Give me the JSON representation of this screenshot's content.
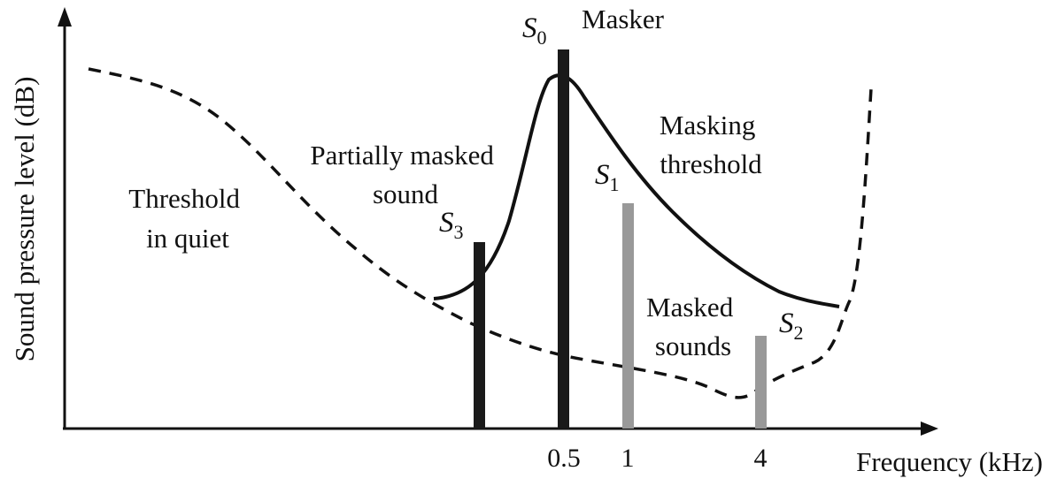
{
  "axes": {
    "y_label": "Sound pressure level (dB)",
    "x_label": "Frequency (kHz)",
    "x_ticks": [
      "0.5",
      "1",
      "4"
    ]
  },
  "labels": {
    "threshold_in_quiet": [
      "Threshold",
      "in quiet"
    ],
    "partially_masked": [
      "Partially masked",
      "sound"
    ],
    "masker": "Masker",
    "masking_threshold": [
      "Masking",
      "threshold"
    ],
    "masked_sounds": [
      "Masked",
      "sounds"
    ]
  },
  "sounds": [
    {
      "symbol": "S",
      "index": "0",
      "role": "masker"
    },
    {
      "symbol": "S",
      "index": "1",
      "role": "masked"
    },
    {
      "symbol": "S",
      "index": "2",
      "role": "masked"
    },
    {
      "symbol": "S",
      "index": "3",
      "role": "partially masked"
    }
  ],
  "colors": {
    "curve": "#111111",
    "masker_bar": "#1a1a1a",
    "partially_masked_bar": "#1a1a1a",
    "masked_bar": "#999999"
  }
}
